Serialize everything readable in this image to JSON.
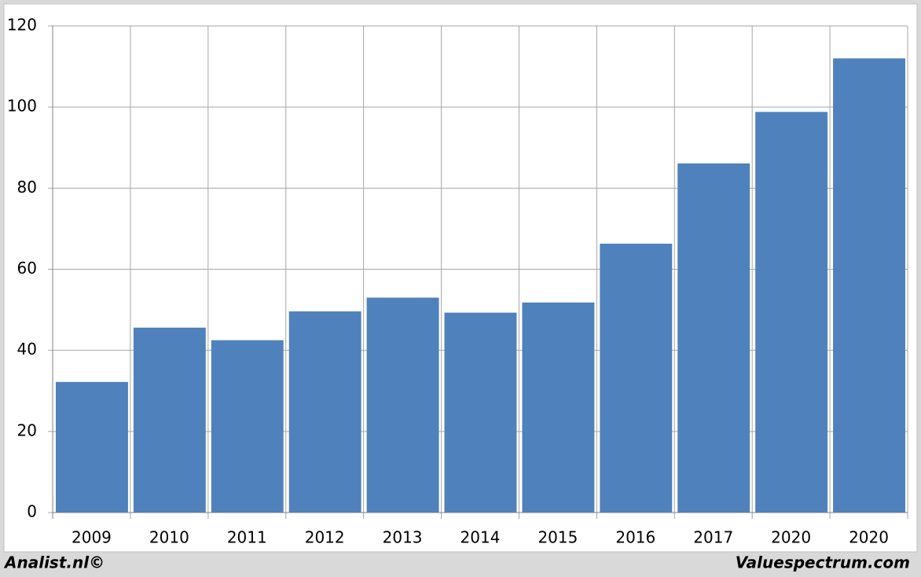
{
  "chart_data": {
    "type": "bar",
    "categories": [
      "2009",
      "2010",
      "2011",
      "2012",
      "2013",
      "2014",
      "2015",
      "2016",
      "2017",
      "2020",
      "2020"
    ],
    "values": [
      32.2,
      45.6,
      42.5,
      49.6,
      53,
      49.3,
      51.8,
      66.3,
      86.1,
      98.8,
      112
    ],
    "color": "#4f81bd",
    "ylim": [
      0,
      120
    ],
    "yticks": [
      0,
      20,
      40,
      60,
      80,
      100,
      120
    ],
    "grid": true,
    "footer": {
      "left": "Analist.nl©",
      "right": "Valuespectrum.com"
    }
  }
}
